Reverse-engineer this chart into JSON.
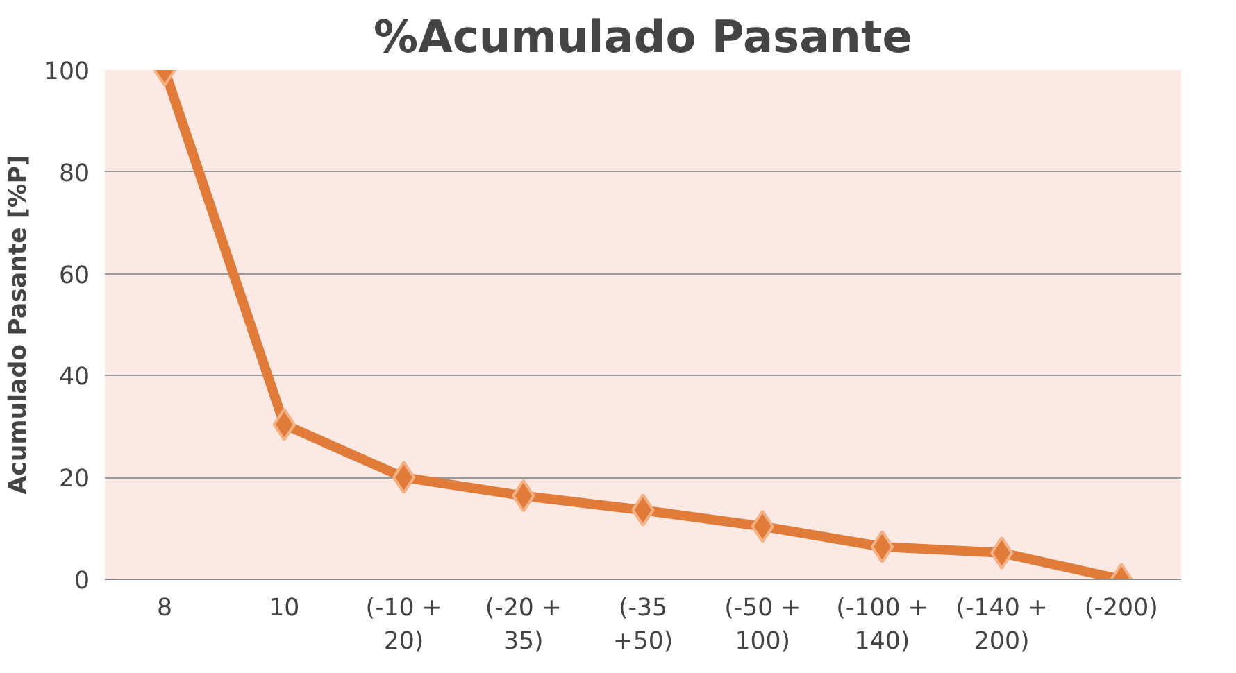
{
  "chart_data": {
    "type": "line",
    "title": "%Acumulado Pasante",
    "ylabel": "Acumulado Pasante [%P]",
    "categories": [
      "8",
      "10",
      "(-10 + 20)",
      "(-20 + 35)",
      "(-35 +50)",
      "(-50 + 100)",
      "(-100 + 140)",
      "(-140 + 200)",
      "(-200)"
    ],
    "series": [
      {
        "color": "#e07b39",
        "values": [
          100,
          30.4,
          20,
          16.4,
          13.6,
          10.4,
          6.4,
          5.2,
          0
        ]
      }
    ],
    "ylim": [
      0,
      100
    ],
    "yticks": [
      0,
      20,
      40,
      60,
      80,
      100
    ],
    "grid": "y",
    "marker": "diamond",
    "line_style": "solid"
  }
}
